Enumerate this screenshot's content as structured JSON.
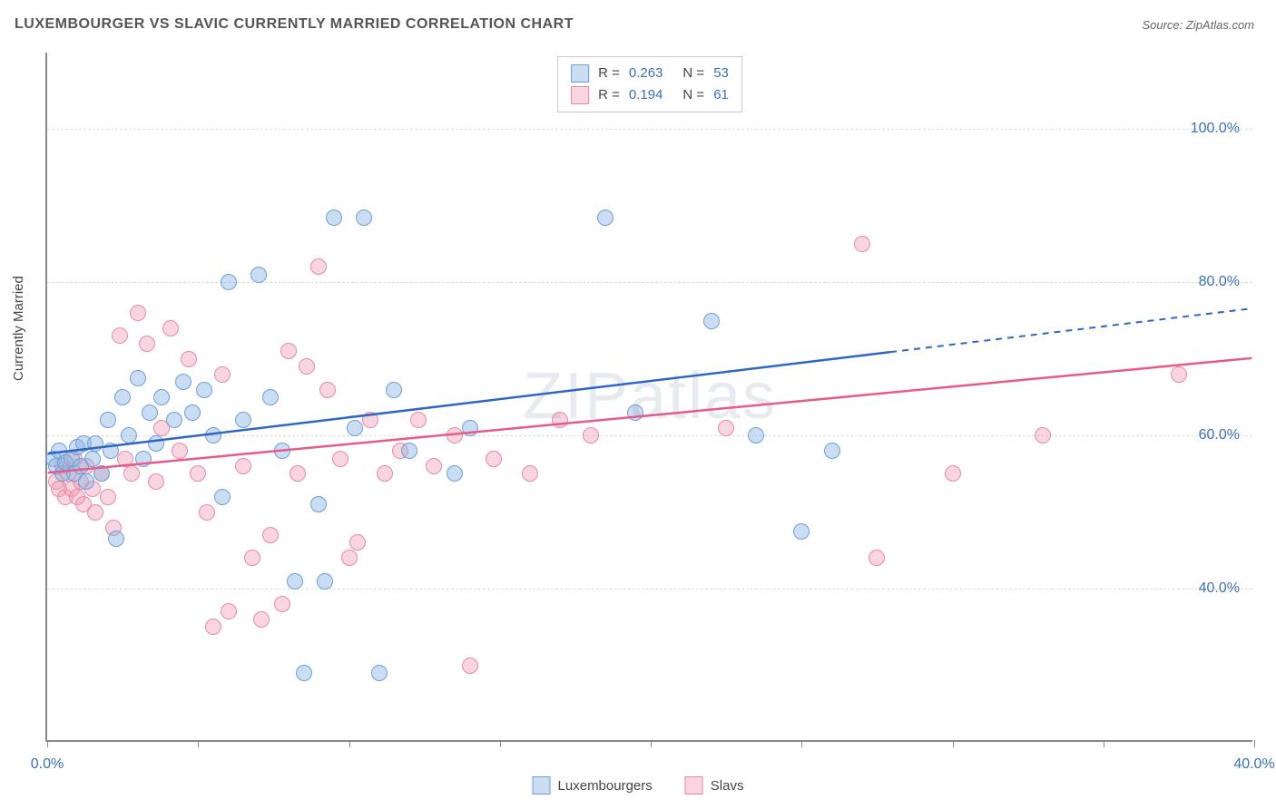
{
  "title": "LUXEMBOURGER VS SLAVIC CURRENTLY MARRIED CORRELATION CHART",
  "source": "Source: ZipAtlas.com",
  "watermark": "ZIPatlas",
  "ylabel": "Currently Married",
  "chart": {
    "type": "scatter",
    "xlim": [
      0,
      40
    ],
    "ylim": [
      20,
      110
    ],
    "yticks": [
      40,
      60,
      80,
      100
    ],
    "ytick_labels": [
      "40.0%",
      "60.0%",
      "80.0%",
      "100.0%"
    ],
    "xticks": [
      0,
      5,
      10,
      15,
      20,
      25,
      30,
      35,
      40
    ],
    "xtick_labels_shown": {
      "0": "0.0%",
      "40": "40.0%"
    },
    "background_color": "#ffffff",
    "grid_color": "#dddddd",
    "axis_color": "#888888",
    "point_radius": 9,
    "series": {
      "lux": {
        "label": "Luxembourgers",
        "fill": "rgba(137,179,226,0.45)",
        "stroke": "#6f9fd8",
        "R": "0.263",
        "N": "53",
        "trend": {
          "y_at_x0": 57.5,
          "y_at_x40": 76.5,
          "solid_until_x": 28,
          "color": "#2f66c4",
          "width": 2.5
        },
        "points": [
          [
            0.2,
            57
          ],
          [
            0.3,
            56
          ],
          [
            0.4,
            58
          ],
          [
            0.5,
            55
          ],
          [
            0.6,
            56.5
          ],
          [
            0.8,
            57
          ],
          [
            0.9,
            55
          ],
          [
            1.0,
            58.5
          ],
          [
            1.1,
            56
          ],
          [
            1.2,
            59
          ],
          [
            1.3,
            54
          ],
          [
            1.5,
            57
          ],
          [
            1.6,
            59
          ],
          [
            1.8,
            55
          ],
          [
            2.0,
            62
          ],
          [
            2.1,
            58
          ],
          [
            2.3,
            46.5
          ],
          [
            2.5,
            65
          ],
          [
            2.7,
            60
          ],
          [
            3.0,
            67.5
          ],
          [
            3.2,
            57
          ],
          [
            3.4,
            63
          ],
          [
            3.6,
            59
          ],
          [
            3.8,
            65
          ],
          [
            4.2,
            62
          ],
          [
            4.5,
            67
          ],
          [
            4.8,
            63
          ],
          [
            5.2,
            66
          ],
          [
            5.5,
            60
          ],
          [
            5.8,
            52
          ],
          [
            6.0,
            80
          ],
          [
            6.5,
            62
          ],
          [
            7.0,
            81
          ],
          [
            7.4,
            65
          ],
          [
            7.8,
            58
          ],
          [
            8.2,
            41
          ],
          [
            8.5,
            29
          ],
          [
            9.0,
            51
          ],
          [
            9.2,
            41
          ],
          [
            9.5,
            88.5
          ],
          [
            10.2,
            61
          ],
          [
            10.5,
            88.5
          ],
          [
            11.0,
            29
          ],
          [
            11.5,
            66
          ],
          [
            12.0,
            58
          ],
          [
            13.5,
            55
          ],
          [
            14.0,
            61
          ],
          [
            18.5,
            88.5
          ],
          [
            19.5,
            63
          ],
          [
            22.0,
            75
          ],
          [
            23.5,
            60
          ],
          [
            25.0,
            47.5
          ],
          [
            26.0,
            58
          ]
        ]
      },
      "slav": {
        "label": "Slavs",
        "fill": "rgba(240,156,178,0.42)",
        "stroke": "#e88aa6",
        "R": "0.194",
        "N": "61",
        "trend": {
          "y_at_x0": 55,
          "y_at_x40": 70,
          "solid_until_x": 40,
          "color": "#e75a8a",
          "width": 2.5
        },
        "points": [
          [
            0.3,
            54
          ],
          [
            0.4,
            53
          ],
          [
            0.5,
            56
          ],
          [
            0.6,
            52
          ],
          [
            0.7,
            55
          ],
          [
            0.8,
            53
          ],
          [
            0.9,
            57
          ],
          [
            1.0,
            52
          ],
          [
            1.1,
            54
          ],
          [
            1.2,
            51
          ],
          [
            1.3,
            56
          ],
          [
            1.5,
            53
          ],
          [
            1.6,
            50
          ],
          [
            1.8,
            55
          ],
          [
            2.0,
            52
          ],
          [
            2.2,
            48
          ],
          [
            2.4,
            73
          ],
          [
            2.6,
            57
          ],
          [
            2.8,
            55
          ],
          [
            3.0,
            76
          ],
          [
            3.3,
            72
          ],
          [
            3.6,
            54
          ],
          [
            3.8,
            61
          ],
          [
            4.1,
            74
          ],
          [
            4.4,
            58
          ],
          [
            4.7,
            70
          ],
          [
            5.0,
            55
          ],
          [
            5.3,
            50
          ],
          [
            5.5,
            35
          ],
          [
            5.8,
            68
          ],
          [
            6.0,
            37
          ],
          [
            6.5,
            56
          ],
          [
            6.8,
            44
          ],
          [
            7.1,
            36
          ],
          [
            7.4,
            47
          ],
          [
            7.8,
            38
          ],
          [
            8.0,
            71
          ],
          [
            8.3,
            55
          ],
          [
            8.6,
            69
          ],
          [
            9.0,
            82
          ],
          [
            9.3,
            66
          ],
          [
            9.7,
            57
          ],
          [
            10.0,
            44
          ],
          [
            10.3,
            46
          ],
          [
            10.7,
            62
          ],
          [
            11.2,
            55
          ],
          [
            11.7,
            58
          ],
          [
            12.3,
            62
          ],
          [
            12.8,
            56
          ],
          [
            13.5,
            60
          ],
          [
            14.0,
            30
          ],
          [
            14.8,
            57
          ],
          [
            16.0,
            55
          ],
          [
            17.0,
            62
          ],
          [
            18.0,
            60
          ],
          [
            22.5,
            61
          ],
          [
            27.0,
            85
          ],
          [
            27.5,
            44
          ],
          [
            30.0,
            55
          ],
          [
            33.0,
            60
          ],
          [
            37.5,
            68
          ]
        ]
      }
    }
  },
  "legend_top": {
    "rows": [
      {
        "swatch": "lux",
        "Rlabel": "R =",
        "Rval": "0.263",
        "Nlabel": "N =",
        "Nval": "53"
      },
      {
        "swatch": "slav",
        "Rlabel": "R =",
        "Rval": "0.194",
        "Nlabel": "N =",
        "Nval": "61"
      }
    ]
  },
  "legend_bottom": {
    "items": [
      {
        "swatch": "lux",
        "label": "Luxembourgers"
      },
      {
        "swatch": "slav",
        "label": "Slavs"
      }
    ]
  }
}
